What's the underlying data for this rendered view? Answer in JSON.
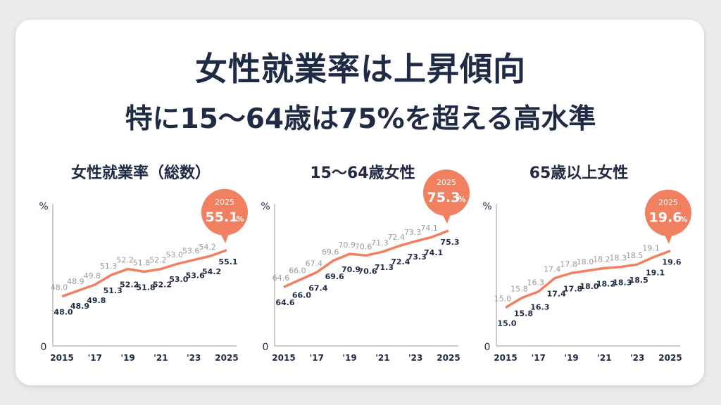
{
  "title_line1": "女性就業率は上昇傾向",
  "title_line2": "特に15〜64歳は75%を超える高水準",
  "colors": {
    "accent": "#f08060",
    "text": "#1f2a44",
    "muted": "#9a9a9a"
  },
  "chart_data": [
    {
      "type": "line",
      "title": "女性就業率（総数）",
      "ylabel": "%",
      "y_zero_label": "0",
      "x": [
        2015,
        2016,
        2017,
        2018,
        2019,
        2020,
        2021,
        2022,
        2023,
        2024,
        2025
      ],
      "x_tick_labels": [
        "2015",
        "'17",
        "'19",
        "'21",
        "'23",
        "2025"
      ],
      "values": [
        48.0,
        48.9,
        49.8,
        51.3,
        52.2,
        51.8,
        52.2,
        53.0,
        53.6,
        54.2,
        55.1
      ],
      "labels": [
        "48.0",
        "48.9",
        "49.8",
        "51.3",
        "52.2",
        "51.8",
        "52.2",
        "53.0",
        "53.6",
        "54.2",
        "55.1"
      ],
      "display_range": [
        40.4,
        62.2
      ],
      "callout": {
        "year": "2025",
        "value": "55.1",
        "unit": "%"
      }
    },
    {
      "type": "line",
      "title": "15〜64歳女性",
      "ylabel": "%",
      "y_zero_label": "0",
      "x": [
        2015,
        2016,
        2017,
        2018,
        2019,
        2020,
        2021,
        2022,
        2023,
        2024,
        2025
      ],
      "x_tick_labels": [
        "2015",
        "'17",
        "'19",
        "'21",
        "'23",
        "2025"
      ],
      "values": [
        64.6,
        66.0,
        67.4,
        69.6,
        70.9,
        70.6,
        71.3,
        72.4,
        73.3,
        74.1,
        75.3
      ],
      "labels": [
        "64.6",
        "66.0",
        "67.4",
        "69.6",
        "70.9",
        "70.6",
        "71.3",
        "72.4",
        "73.3",
        "74.1",
        "75.3"
      ],
      "display_range": [
        53.4,
        80.4
      ],
      "callout": {
        "year": "2025",
        "value": "75.3",
        "unit": "%"
      }
    },
    {
      "type": "line",
      "title": "65歳以上女性",
      "ylabel": "%",
      "y_zero_label": "0",
      "x": [
        2015,
        2016,
        2017,
        2018,
        2019,
        2020,
        2021,
        2022,
        2023,
        2024,
        2025
      ],
      "x_tick_labels": [
        "2015",
        "'17",
        "'19",
        "'21",
        "'23",
        "2025"
      ],
      "values": [
        15.0,
        15.8,
        16.3,
        17.4,
        17.8,
        18.0,
        18.2,
        18.3,
        18.5,
        19.1,
        19.6
      ],
      "labels": [
        "15.0",
        "15.8",
        "16.3",
        "17.4",
        "17.8",
        "18.0",
        "18.2",
        "18.3",
        "18.5",
        "19.1",
        "19.6"
      ],
      "display_range": [
        11.9,
        23.4
      ],
      "callout": {
        "year": "2025",
        "value": "19.6",
        "unit": "%"
      }
    }
  ]
}
